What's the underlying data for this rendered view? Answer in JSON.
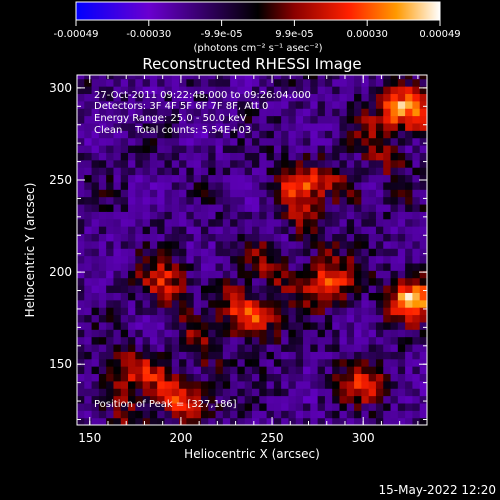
{
  "colorbar": {
    "ticks": [
      "-0.00049",
      "-0.00030",
      "-9.9e-05",
      "9.9e-05",
      "0.00030",
      "0.00049"
    ],
    "units_label": "(photons cm⁻² s⁻¹ asec⁻²)",
    "colors": [
      "#0000ff",
      "#6a00d0",
      "#000000",
      "#8b0000",
      "#ff2000",
      "#ff9900",
      "#ffffff"
    ]
  },
  "annotations": {
    "time_range": "27-Oct-2011 09:22:48.000 to 09:26:04.000",
    "detectors": "Detectors: 3F 4F 5F 6F 7F 8F, Att 0",
    "energy": "Energy Range: 25.0 - 50.0 keV",
    "clean": "Clean    Total counts: 5.54E+03",
    "peak": "Position of Peak = [327,186]"
  },
  "footer": {
    "date": "15-May-2022 12:20"
  },
  "chart_data": {
    "type": "heatmap",
    "title": "Reconstructed RHESSI Image",
    "xlabel": "Heliocentric X (arcsec)",
    "ylabel": "Heliocentric Y (arcsec)",
    "xlim": [
      143,
      335
    ],
    "ylim": [
      117,
      307
    ],
    "xticks": [
      150,
      200,
      250,
      300
    ],
    "yticks": [
      150,
      200,
      250,
      300
    ],
    "grid": false,
    "peak": [
      327,
      186
    ],
    "clim": [
      -0.00049,
      0.00049
    ],
    "bright_regions": [
      {
        "x": 327,
        "y": 186,
        "value": 0.00049
      },
      {
        "x": 320,
        "y": 287,
        "value": 0.0004
      },
      {
        "x": 265,
        "y": 248,
        "value": 0.00035
      },
      {
        "x": 280,
        "y": 195,
        "value": 0.00038
      },
      {
        "x": 240,
        "y": 175,
        "value": 0.00032
      },
      {
        "x": 205,
        "y": 130,
        "value": 0.00028
      },
      {
        "x": 170,
        "y": 145,
        "value": 0.00025
      },
      {
        "x": 190,
        "y": 195,
        "value": 0.0003
      },
      {
        "x": 300,
        "y": 140,
        "value": 0.0003
      }
    ]
  }
}
